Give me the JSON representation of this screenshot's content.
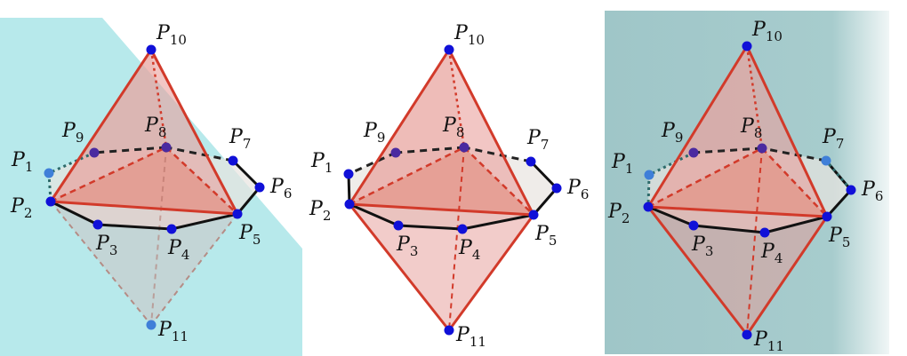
{
  "panels": [
    {
      "points": [
        {
          "name": "P",
          "sub": "1"
        },
        {
          "name": "P",
          "sub": "2"
        },
        {
          "name": "P",
          "sub": "3"
        },
        {
          "name": "P",
          "sub": "4"
        },
        {
          "name": "P",
          "sub": "5"
        },
        {
          "name": "P",
          "sub": "6"
        },
        {
          "name": "P",
          "sub": "7"
        },
        {
          "name": "P",
          "sub": "8"
        },
        {
          "name": "P",
          "sub": "9"
        },
        {
          "name": "P",
          "sub": "10"
        },
        {
          "name": "P",
          "sub": "11"
        }
      ]
    },
    {
      "points": [
        {
          "name": "P",
          "sub": "1"
        },
        {
          "name": "P",
          "sub": "2"
        },
        {
          "name": "P",
          "sub": "3"
        },
        {
          "name": "P",
          "sub": "4"
        },
        {
          "name": "P",
          "sub": "5"
        },
        {
          "name": "P",
          "sub": "6"
        },
        {
          "name": "P",
          "sub": "7"
        },
        {
          "name": "P",
          "sub": "8"
        },
        {
          "name": "P",
          "sub": "9"
        },
        {
          "name": "P",
          "sub": "10"
        },
        {
          "name": "P",
          "sub": "11"
        }
      ]
    },
    {
      "points": [
        {
          "name": "P",
          "sub": "1"
        },
        {
          "name": "P",
          "sub": "2"
        },
        {
          "name": "P",
          "sub": "3"
        },
        {
          "name": "P",
          "sub": "4"
        },
        {
          "name": "P",
          "sub": "5"
        },
        {
          "name": "P",
          "sub": "6"
        },
        {
          "name": "P",
          "sub": "7"
        },
        {
          "name": "P",
          "sub": "8"
        },
        {
          "name": "P",
          "sub": "9"
        },
        {
          "name": "P",
          "sub": "10"
        },
        {
          "name": "P",
          "sub": "11"
        }
      ]
    }
  ]
}
